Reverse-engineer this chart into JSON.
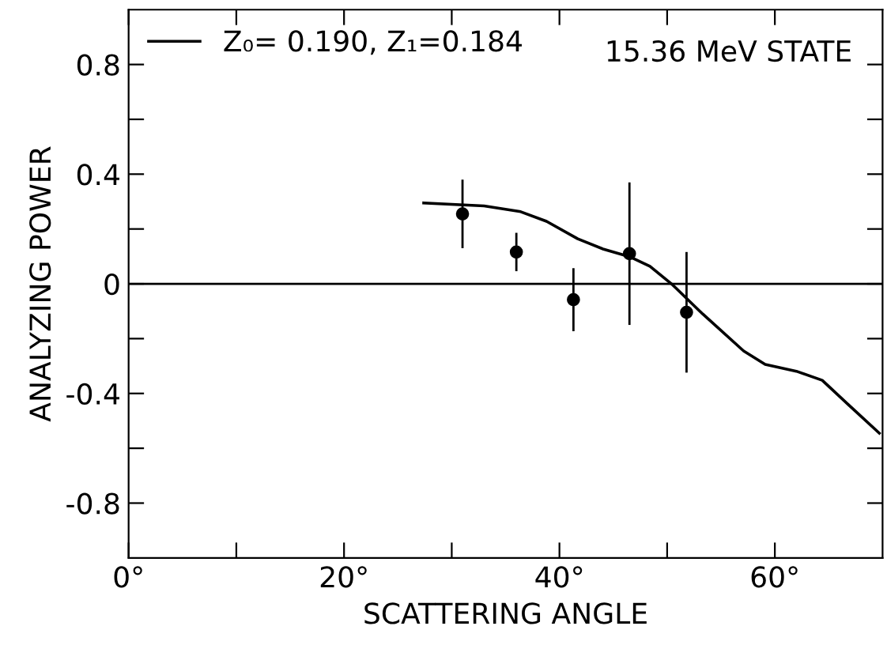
{
  "chart_data": {
    "type": "scatter",
    "xlabel": "SCATTERING ANGLE",
    "ylabel": "ANALYZING POWER",
    "xlim": [
      0,
      70
    ],
    "ylim": [
      -1,
      1
    ],
    "xticks": [
      {
        "value": 0,
        "label": "0°"
      },
      {
        "value": 10,
        "label": null
      },
      {
        "value": 20,
        "label": "20°"
      },
      {
        "value": 30,
        "label": null
      },
      {
        "value": 40,
        "label": "40°"
      },
      {
        "value": 50,
        "label": null
      },
      {
        "value": 60,
        "label": "60°"
      }
    ],
    "yticks": [
      {
        "value": -0.8,
        "label": "-0.8"
      },
      {
        "value": -0.6,
        "label": null
      },
      {
        "value": -0.4,
        "label": "-0.4"
      },
      {
        "value": -0.2,
        "label": null
      },
      0,
      {
        "value": 0.2,
        "label": null
      },
      {
        "value": 0.4,
        "label": "0.4"
      },
      {
        "value": 0.6,
        "label": null
      },
      {
        "value": 0.8,
        "label": "0.8"
      }
    ],
    "series": [
      {
        "type": "line",
        "name": "Z₀= 0.190, Z₁=0.184",
        "color": "#000000",
        "line_style": "solid",
        "x": [
          27.4,
          33.0,
          36.4,
          38.8,
          41.7,
          44.1,
          46.5,
          48.4,
          50.4,
          53.3,
          57.1,
          59.1,
          62.0,
          64.4,
          66.8,
          69.7
        ],
        "values": [
          0.295,
          0.284,
          0.263,
          0.228,
          0.164,
          0.126,
          0.099,
          0.064,
          0.0,
          -0.11,
          -0.245,
          -0.294,
          -0.319,
          -0.352,
          -0.44,
          -0.545
        ]
      },
      {
        "color": "#000000",
        "marker": "circle",
        "x": [
          31,
          36,
          41.3,
          46.5,
          51.8
        ],
        "values": [
          0.255,
          0.116,
          -0.058,
          0.11,
          -0.104
        ],
        "errors": [
          0.125,
          0.07,
          0.115,
          0.26,
          0.22
        ]
      }
    ],
    "ref_lines": [
      {
        "axis": "y",
        "value": 0,
        "color": "#000000",
        "line_style": "solid"
      }
    ],
    "annotations": [
      {
        "text": "15.36 MeV STATE"
      }
    ],
    "legend": "top left",
    "grid": false
  }
}
